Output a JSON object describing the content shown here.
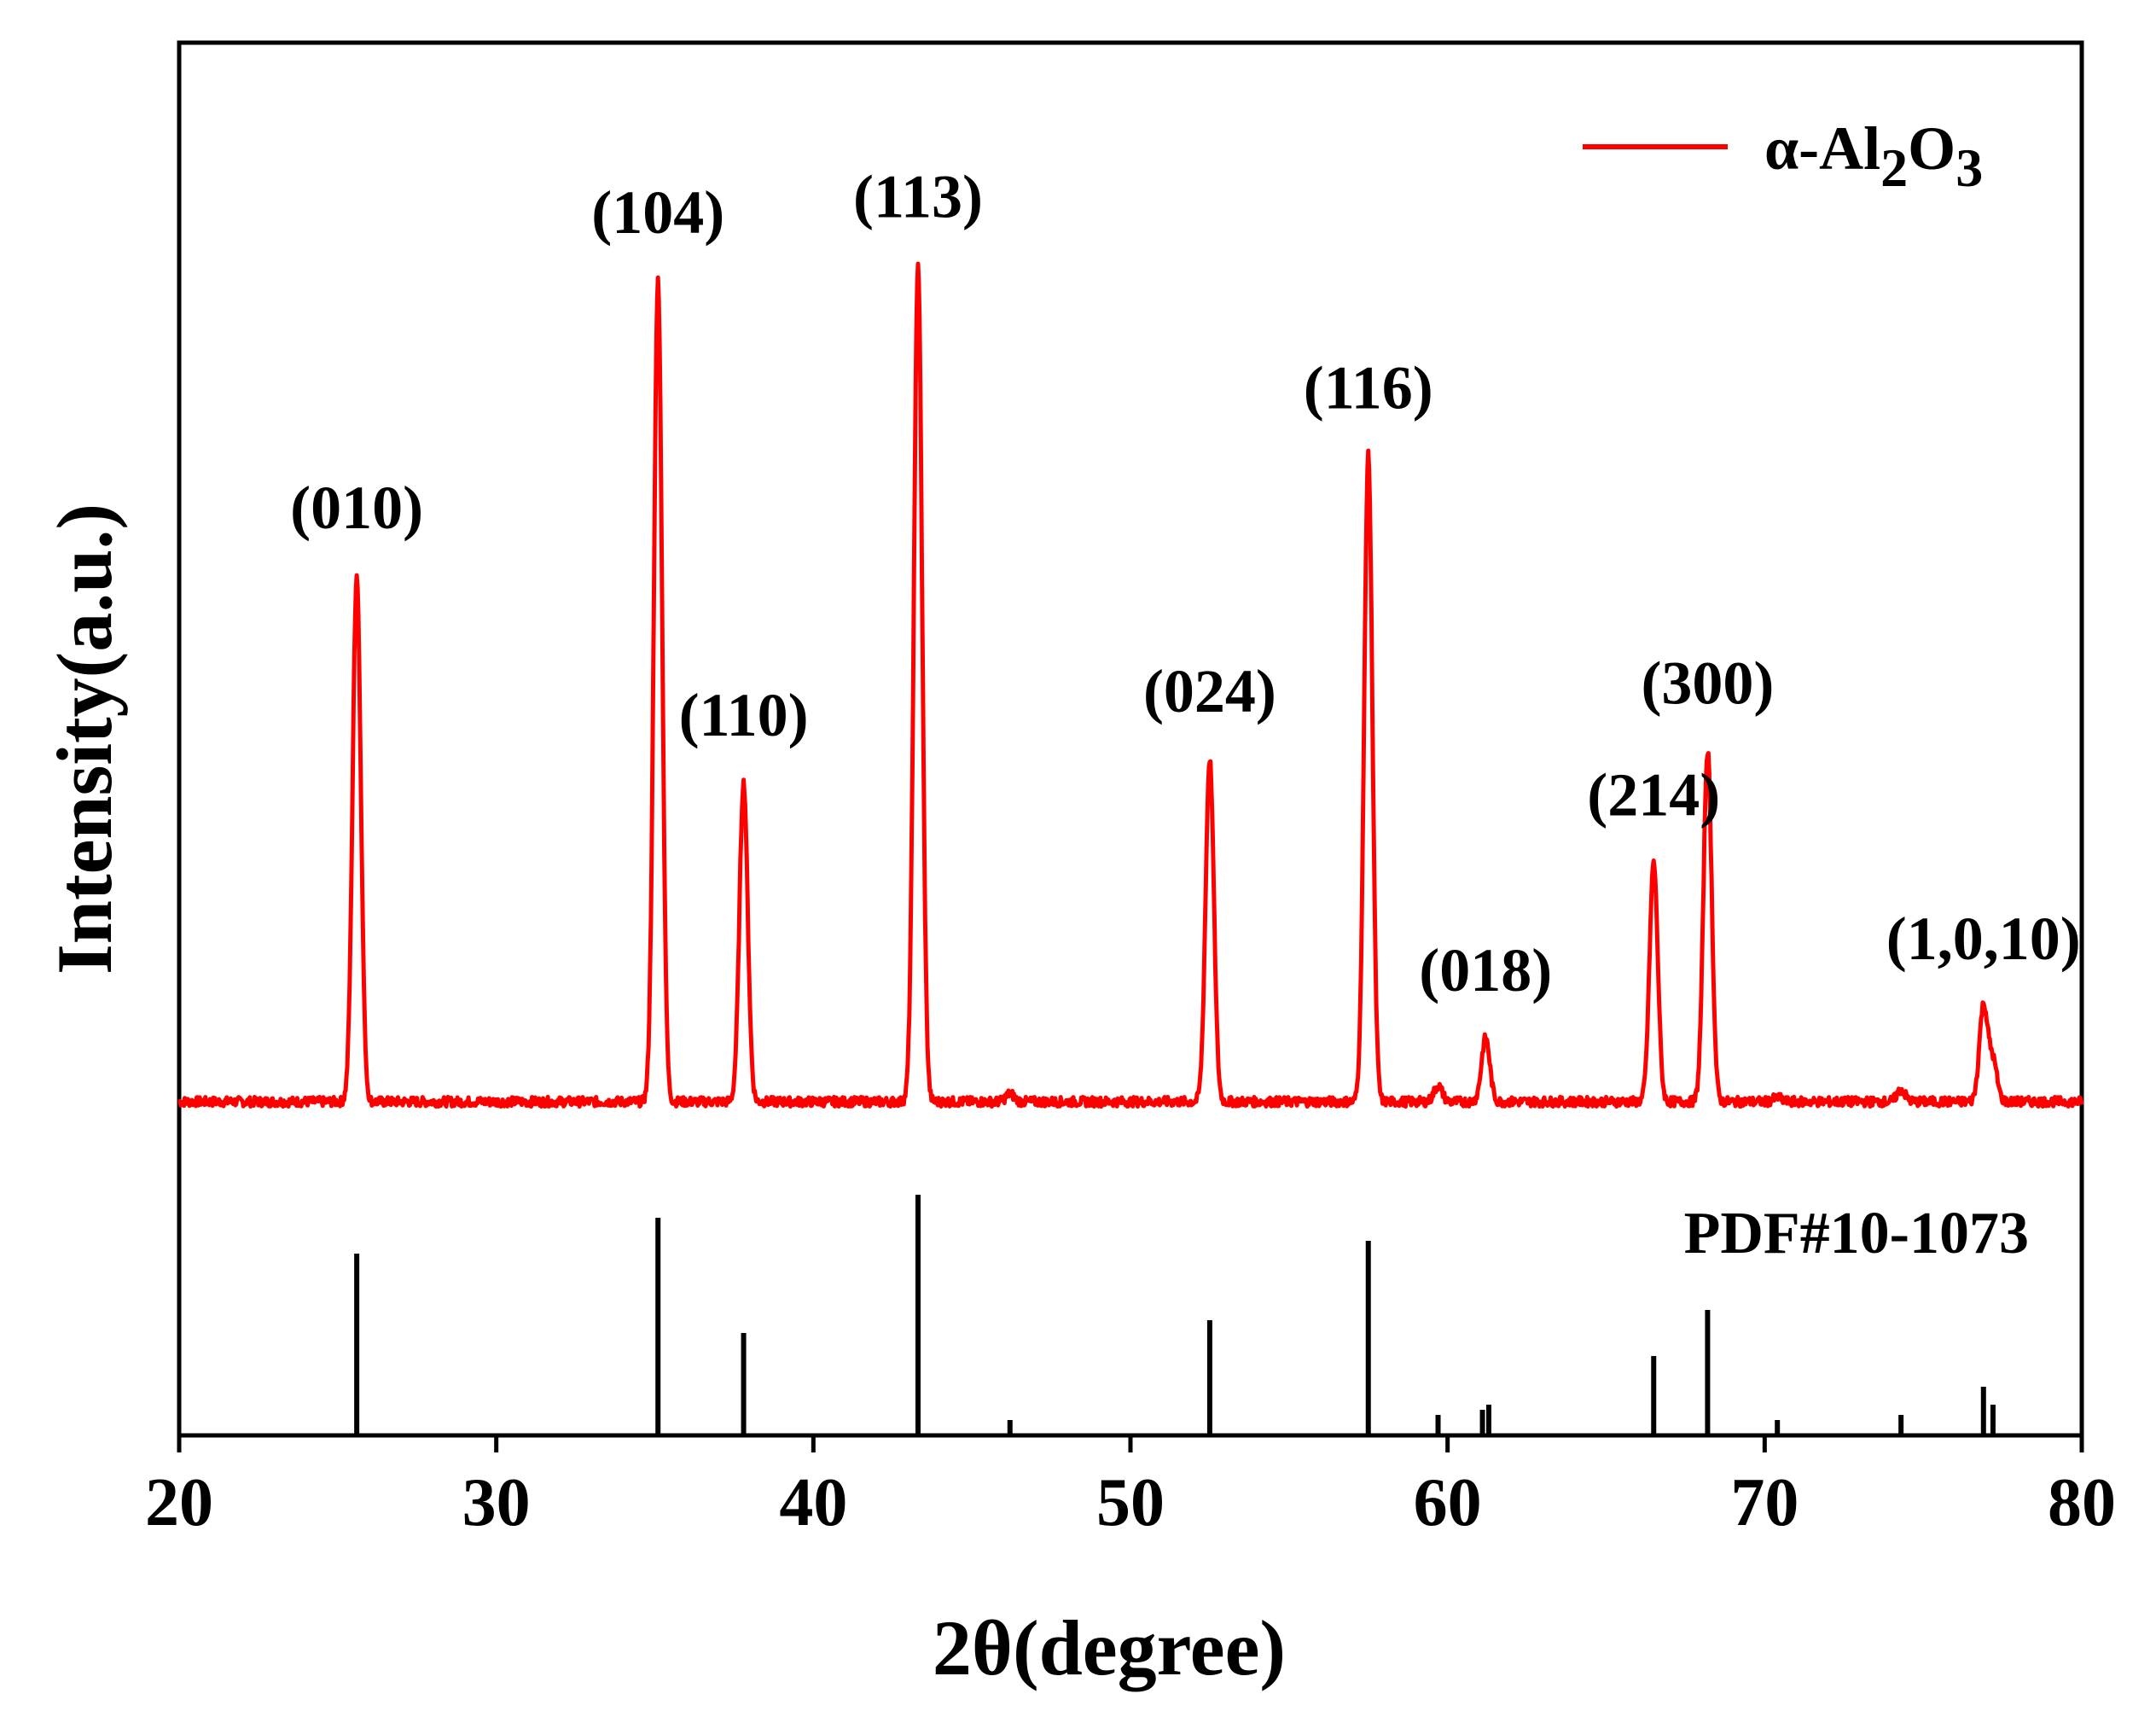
{
  "chart_data": {
    "type": "line",
    "xlabel": "2θ(degree)",
    "ylabel": "Intensity(a.u.)",
    "xlim": [
      20,
      80
    ],
    "xticks": [
      20,
      30,
      40,
      50,
      60,
      70,
      80
    ],
    "tick_labels": [
      "20",
      "30",
      "40",
      "50",
      "60",
      "70",
      "80"
    ],
    "grid": false,
    "legend_position": "top-right",
    "series": [
      {
        "name": "α-Al2O3",
        "legend_prefix": "α-Al",
        "legend_sub1": "2",
        "legend_mid": "O",
        "legend_sub2": "3",
        "color": "#ff0000",
        "baseline": 0.0,
        "peaks": [
          {
            "x": 25.6,
            "y": 0.66,
            "label": "(010)"
          },
          {
            "x": 35.1,
            "y": 1.03,
            "label": "(104)"
          },
          {
            "x": 37.8,
            "y": 0.4,
            "label": "(110)"
          },
          {
            "x": 43.3,
            "y": 1.05,
            "label": "(113)"
          },
          {
            "x": 46.2,
            "y": 0.01,
            "label": ""
          },
          {
            "x": 52.5,
            "y": 0.43,
            "label": "(024)"
          },
          {
            "x": 57.5,
            "y": 0.81,
            "label": "(116)"
          },
          {
            "x": 59.7,
            "y": 0.02,
            "label": ""
          },
          {
            "x": 61.2,
            "y": 0.08,
            "label": "(018)"
          },
          {
            "x": 66.5,
            "y": 0.3,
            "label": "(214)"
          },
          {
            "x": 68.2,
            "y": 0.44,
            "label": "(300)"
          },
          {
            "x": 70.4,
            "y": 0.005,
            "label": ""
          },
          {
            "x": 74.3,
            "y": 0.015,
            "label": ""
          },
          {
            "x": 76.9,
            "y": 0.12,
            "label": "(1,0,10)"
          },
          {
            "x": 77.2,
            "y": 0.05,
            "label": ""
          }
        ]
      }
    ],
    "reference": {
      "name": "PDF#10-1073",
      "color": "#000000",
      "lines": [
        {
          "x": 25.6,
          "y": 0.71
        },
        {
          "x": 35.1,
          "y": 0.85
        },
        {
          "x": 37.8,
          "y": 0.4
        },
        {
          "x": 43.3,
          "y": 0.94
        },
        {
          "x": 46.2,
          "y": 0.06
        },
        {
          "x": 52.5,
          "y": 0.45
        },
        {
          "x": 57.5,
          "y": 0.76
        },
        {
          "x": 59.7,
          "y": 0.08
        },
        {
          "x": 61.1,
          "y": 0.1
        },
        {
          "x": 61.3,
          "y": 0.12
        },
        {
          "x": 66.5,
          "y": 0.31
        },
        {
          "x": 68.2,
          "y": 0.49
        },
        {
          "x": 70.4,
          "y": 0.06
        },
        {
          "x": 74.3,
          "y": 0.08
        },
        {
          "x": 76.9,
          "y": 0.19
        },
        {
          "x": 77.2,
          "y": 0.12
        }
      ]
    }
  }
}
